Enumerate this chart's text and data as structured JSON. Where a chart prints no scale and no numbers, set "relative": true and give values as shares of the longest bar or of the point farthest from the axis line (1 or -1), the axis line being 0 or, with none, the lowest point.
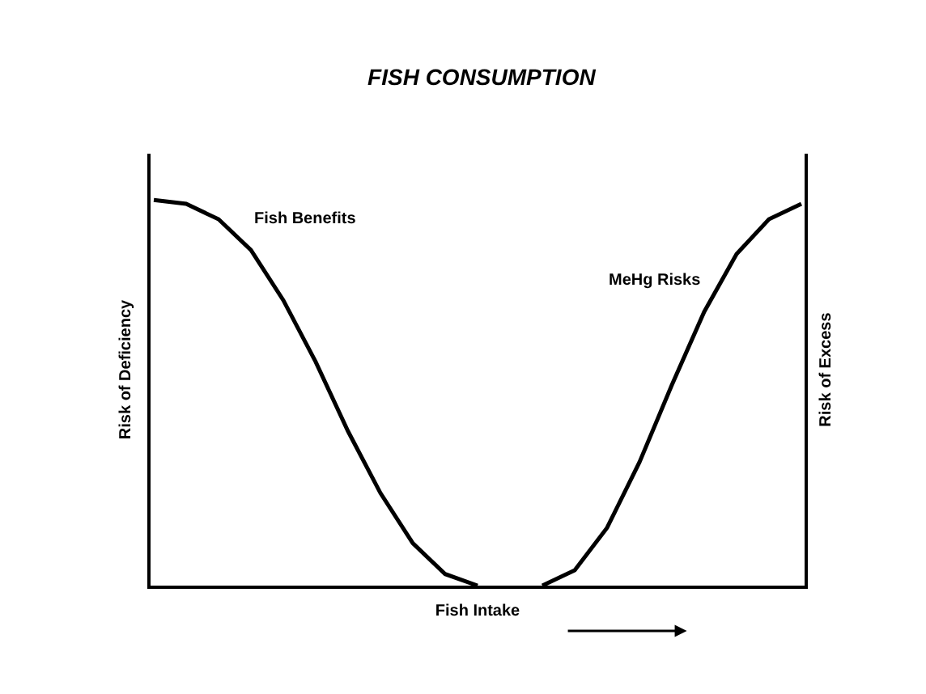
{
  "chart_data": {
    "type": "line",
    "title": "FISH CONSUMPTION",
    "xlabel": "Fish Intake",
    "ylabel": "Risk of Deficiency",
    "y2label": "Risk of Excess",
    "relative": true,
    "legend": false,
    "marker": "none",
    "categories": [
      null,
      null,
      null,
      null,
      null,
      null,
      null,
      null,
      null,
      null,
      null,
      null,
      null,
      null,
      null,
      null,
      null,
      null,
      null,
      null,
      null
    ],
    "series": [
      {
        "name": "Fish Benefits",
        "color": "#000000",
        "values": [
          1.0,
          0.99,
          0.95,
          0.87,
          0.74,
          0.58,
          0.4,
          0.24,
          0.11,
          0.03,
          0,
          null,
          null,
          null,
          null,
          null,
          null,
          null,
          null,
          null,
          null
        ]
      },
      {
        "name": "MeHg Risks",
        "color": "#000000",
        "values": [
          null,
          null,
          null,
          null,
          null,
          null,
          null,
          null,
          null,
          null,
          null,
          null,
          0,
          0.04,
          0.15,
          0.32,
          0.52,
          0.71,
          0.86,
          0.95,
          0.99
        ]
      }
    ]
  }
}
